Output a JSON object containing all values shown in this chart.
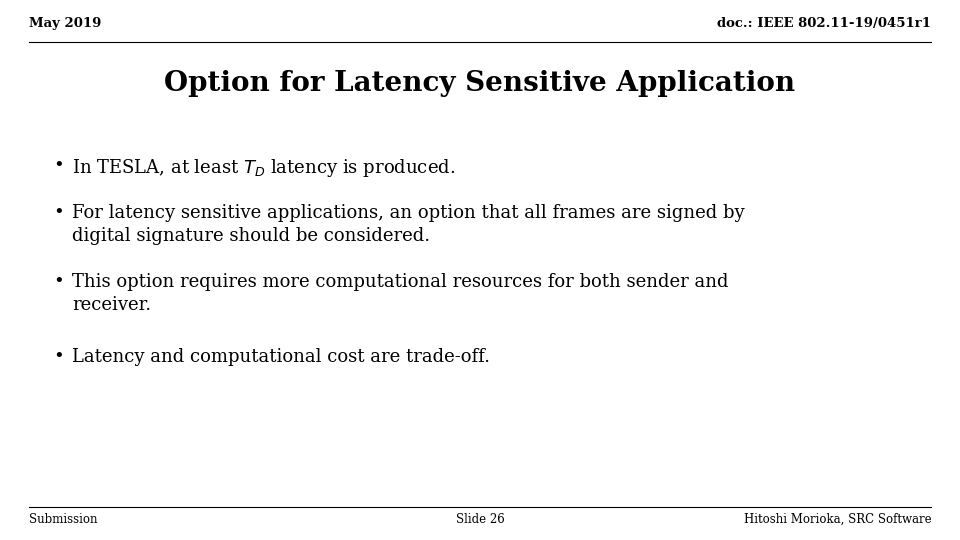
{
  "bg_color": "#ffffff",
  "top_left_text": "May 2019",
  "top_right_text": "doc.: IEEE 802.11-19/0451r1",
  "title": "Option for Latency Sensitive Application",
  "bullet2": "For latency sensitive applications, an option that all frames are signed by\ndigital signature should be considered.",
  "bullet3": "This option requires more computational resources for both sender and\nreceiver.",
  "bullet4": "Latency and computational cost are trade-off.",
  "bottom_left": "Submission",
  "bottom_center": "Slide 26",
  "bottom_right": "Hitoshi Morioka, SRC Software",
  "text_color": "#000000",
  "header_fontsize": 9.5,
  "title_fontsize": 20,
  "bullet_fontsize": 13,
  "footer_fontsize": 8.5
}
